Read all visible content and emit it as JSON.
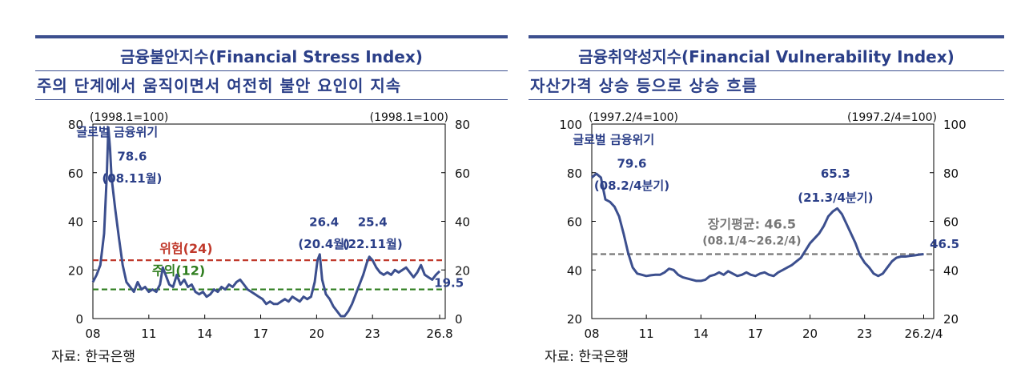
{
  "left": {
    "title": "금융불안지수(Financial Stress Index)",
    "subtitle": "주의 단계에서 움직이면서 여전히 불안 요인이 지속",
    "source": "자료: 한국은행",
    "chart_data": {
      "type": "line",
      "unit_left": "(1998.1=100)",
      "unit_right": "(1998.1=100)",
      "ylim": [
        0,
        80
      ],
      "yticks": [
        "0",
        "20",
        "40",
        "60",
        "80"
      ],
      "xlim": [
        2008,
        2026.9
      ],
      "xticks": [
        {
          "x": 2008,
          "label": "08"
        },
        {
          "x": 2011,
          "label": "11"
        },
        {
          "x": 2014,
          "label": "14"
        },
        {
          "x": 2017,
          "label": "17"
        },
        {
          "x": 2020,
          "label": "20"
        },
        {
          "x": 2023,
          "label": "23"
        },
        {
          "x": 2026.6,
          "label": "26.8"
        }
      ],
      "series": [
        {
          "color": "#3c4f8e",
          "points": [
            [
              2008.0,
              15
            ],
            [
              2008.2,
              18
            ],
            [
              2008.4,
              22
            ],
            [
              2008.6,
              35
            ],
            [
              2008.75,
              60
            ],
            [
              2008.83,
              78.6
            ],
            [
              2008.92,
              70
            ],
            [
              2009.0,
              58
            ],
            [
              2009.2,
              45
            ],
            [
              2009.4,
              33
            ],
            [
              2009.6,
              22
            ],
            [
              2009.8,
              15
            ],
            [
              2010.0,
              13
            ],
            [
              2010.2,
              11
            ],
            [
              2010.4,
              15
            ],
            [
              2010.6,
              12
            ],
            [
              2010.8,
              13
            ],
            [
              2011.0,
              11
            ],
            [
              2011.2,
              12
            ],
            [
              2011.4,
              11
            ],
            [
              2011.6,
              14
            ],
            [
              2011.75,
              21
            ],
            [
              2011.9,
              18
            ],
            [
              2012.1,
              14
            ],
            [
              2012.3,
              13
            ],
            [
              2012.5,
              18
            ],
            [
              2012.7,
              14
            ],
            [
              2012.9,
              16
            ],
            [
              2013.1,
              13
            ],
            [
              2013.3,
              14
            ],
            [
              2013.5,
              11
            ],
            [
              2013.7,
              10
            ],
            [
              2013.9,
              11
            ],
            [
              2014.1,
              9
            ],
            [
              2014.3,
              10
            ],
            [
              2014.5,
              12
            ],
            [
              2014.7,
              11
            ],
            [
              2014.9,
              13
            ],
            [
              2015.1,
              12
            ],
            [
              2015.3,
              14
            ],
            [
              2015.5,
              13
            ],
            [
              2015.7,
              15
            ],
            [
              2015.9,
              16
            ],
            [
              2016.1,
              14
            ],
            [
              2016.3,
              12
            ],
            [
              2016.5,
              11
            ],
            [
              2016.7,
              10
            ],
            [
              2016.9,
              9
            ],
            [
              2017.1,
              8
            ],
            [
              2017.3,
              6
            ],
            [
              2017.5,
              7
            ],
            [
              2017.7,
              6
            ],
            [
              2017.9,
              6
            ],
            [
              2018.1,
              7
            ],
            [
              2018.3,
              8
            ],
            [
              2018.5,
              7
            ],
            [
              2018.7,
              9
            ],
            [
              2018.9,
              8
            ],
            [
              2019.1,
              7
            ],
            [
              2019.3,
              9
            ],
            [
              2019.5,
              8
            ],
            [
              2019.7,
              9
            ],
            [
              2019.9,
              15
            ],
            [
              2020.05,
              24
            ],
            [
              2020.17,
              26.4
            ],
            [
              2020.3,
              16
            ],
            [
              2020.5,
              10
            ],
            [
              2020.7,
              8
            ],
            [
              2020.9,
              5
            ],
            [
              2021.1,
              3
            ],
            [
              2021.3,
              1
            ],
            [
              2021.5,
              1
            ],
            [
              2021.7,
              3
            ],
            [
              2021.9,
              6
            ],
            [
              2022.1,
              10
            ],
            [
              2022.3,
              14
            ],
            [
              2022.5,
              18
            ],
            [
              2022.7,
              23
            ],
            [
              2022.83,
              25.4
            ],
            [
              2023.0,
              24
            ],
            [
              2023.2,
              21
            ],
            [
              2023.4,
              19
            ],
            [
              2023.6,
              18
            ],
            [
              2023.8,
              19
            ],
            [
              2024.0,
              18
            ],
            [
              2024.2,
              20
            ],
            [
              2024.4,
              19
            ],
            [
              2024.6,
              20
            ],
            [
              2024.8,
              21
            ],
            [
              2025.0,
              19
            ],
            [
              2025.2,
              17
            ],
            [
              2025.4,
              19
            ],
            [
              2025.6,
              22
            ],
            [
              2025.8,
              18
            ],
            [
              2026.0,
              17
            ],
            [
              2026.2,
              16
            ],
            [
              2026.4,
              18
            ],
            [
              2026.6,
              19.5
            ]
          ]
        }
      ],
      "reference_lines": [
        {
          "value": 24,
          "label": "위험(24)",
          "color": "#c0392b"
        },
        {
          "value": 12,
          "label": "주의(12)",
          "color": "#2e7d1e"
        }
      ],
      "annotations": [
        {
          "text": "글로벌 금융위기",
          "x": 2009.3,
          "y": 75
        },
        {
          "text": "78.6",
          "x": 2010.1,
          "y": 65
        },
        {
          "text": "(08.11월)",
          "x": 2010.1,
          "y": 56
        },
        {
          "text": "26.4",
          "x": 2020.4,
          "y": 38
        },
        {
          "text": "(20.4월)",
          "x": 2020.4,
          "y": 29
        },
        {
          "text": "25.4",
          "x": 2023.0,
          "y": 38
        },
        {
          "text": "(22.11월)",
          "x": 2023.0,
          "y": 29
        },
        {
          "text": "19.5",
          "x": 2027.1,
          "y": 13
        }
      ]
    }
  },
  "right": {
    "title": "금융취약성지수(Financial Vulnerability Index)",
    "subtitle": "자산가격 상승 등으로 상승 흐름",
    "source": "자료: 한국은행",
    "chart_data": {
      "type": "line",
      "unit_left": "(1997.2/4=100)",
      "unit_right": "(1997.2/4=100)",
      "ylim": [
        20,
        100
      ],
      "yticks": [
        "20",
        "40",
        "60",
        "80",
        "100"
      ],
      "xlim": [
        2008,
        2026.8
      ],
      "xticks": [
        {
          "x": 2008,
          "label": "08"
        },
        {
          "x": 2011,
          "label": "11"
        },
        {
          "x": 2014,
          "label": "14"
        },
        {
          "x": 2017,
          "label": "17"
        },
        {
          "x": 2020,
          "label": "20"
        },
        {
          "x": 2023,
          "label": "23"
        },
        {
          "x": 2026.25,
          "label": "26.2/4"
        }
      ],
      "series": [
        {
          "color": "#3c4f8e",
          "points": [
            [
              2008.0,
              78
            ],
            [
              2008.25,
              79.6
            ],
            [
              2008.5,
              78
            ],
            [
              2008.75,
              69
            ],
            [
              2009.0,
              68
            ],
            [
              2009.25,
              66
            ],
            [
              2009.5,
              62
            ],
            [
              2009.75,
              55
            ],
            [
              2010.0,
              47
            ],
            [
              2010.25,
              41
            ],
            [
              2010.5,
              38.5
            ],
            [
              2010.75,
              38
            ],
            [
              2011.0,
              37.5
            ],
            [
              2011.25,
              37.8
            ],
            [
              2011.5,
              38
            ],
            [
              2011.75,
              38
            ],
            [
              2012.0,
              39
            ],
            [
              2012.25,
              40.5
            ],
            [
              2012.5,
              40
            ],
            [
              2012.75,
              38
            ],
            [
              2013.0,
              37
            ],
            [
              2013.25,
              36.5
            ],
            [
              2013.5,
              36
            ],
            [
              2013.75,
              35.5
            ],
            [
              2014.0,
              35.5
            ],
            [
              2014.25,
              36
            ],
            [
              2014.5,
              37.5
            ],
            [
              2014.75,
              38
            ],
            [
              2015.0,
              39
            ],
            [
              2015.25,
              38
            ],
            [
              2015.5,
              39.5
            ],
            [
              2015.75,
              38.5
            ],
            [
              2016.0,
              37.5
            ],
            [
              2016.25,
              38
            ],
            [
              2016.5,
              39
            ],
            [
              2016.75,
              38
            ],
            [
              2017.0,
              37.5
            ],
            [
              2017.25,
              38.5
            ],
            [
              2017.5,
              39
            ],
            [
              2017.75,
              38
            ],
            [
              2018.0,
              37.5
            ],
            [
              2018.25,
              39
            ],
            [
              2018.5,
              40
            ],
            [
              2018.75,
              41
            ],
            [
              2019.0,
              42
            ],
            [
              2019.25,
              43.5
            ],
            [
              2019.5,
              45
            ],
            [
              2019.75,
              48
            ],
            [
              2020.0,
              51
            ],
            [
              2020.25,
              53
            ],
            [
              2020.5,
              55
            ],
            [
              2020.75,
              58
            ],
            [
              2021.0,
              62
            ],
            [
              2021.25,
              64
            ],
            [
              2021.5,
              65.3
            ],
            [
              2021.75,
              63
            ],
            [
              2022.0,
              59
            ],
            [
              2022.25,
              55
            ],
            [
              2022.5,
              51
            ],
            [
              2022.75,
              46
            ],
            [
              2023.0,
              43
            ],
            [
              2023.25,
              41
            ],
            [
              2023.5,
              38.5
            ],
            [
              2023.75,
              37.5
            ],
            [
              2024.0,
              38.5
            ],
            [
              2024.25,
              41
            ],
            [
              2024.5,
              43.5
            ],
            [
              2024.75,
              45
            ],
            [
              2025.0,
              45.5
            ],
            [
              2025.25,
              45.5
            ],
            [
              2025.5,
              45.8
            ],
            [
              2025.75,
              46
            ],
            [
              2026.0,
              46.3
            ],
            [
              2026.25,
              46.5
            ]
          ]
        }
      ],
      "reference_lines": [
        {
          "value": 46.5,
          "label": "장기평균: 46.5",
          "sublabel": "(08.1/4~26.2/4)",
          "color": "#777777"
        }
      ],
      "annotations": [
        {
          "text": "글로벌 금융위기",
          "x": 2009.2,
          "y": 92
        },
        {
          "text": "79.6",
          "x": 2010.2,
          "y": 82
        },
        {
          "text": "(08.2/4분기)",
          "x": 2010.2,
          "y": 73
        },
        {
          "text": "65.3",
          "x": 2021.4,
          "y": 78
        },
        {
          "text": "(21.3/4분기)",
          "x": 2021.4,
          "y": 68
        },
        {
          "text": "46.5",
          "x": 2027.4,
          "y": 49
        }
      ]
    }
  }
}
